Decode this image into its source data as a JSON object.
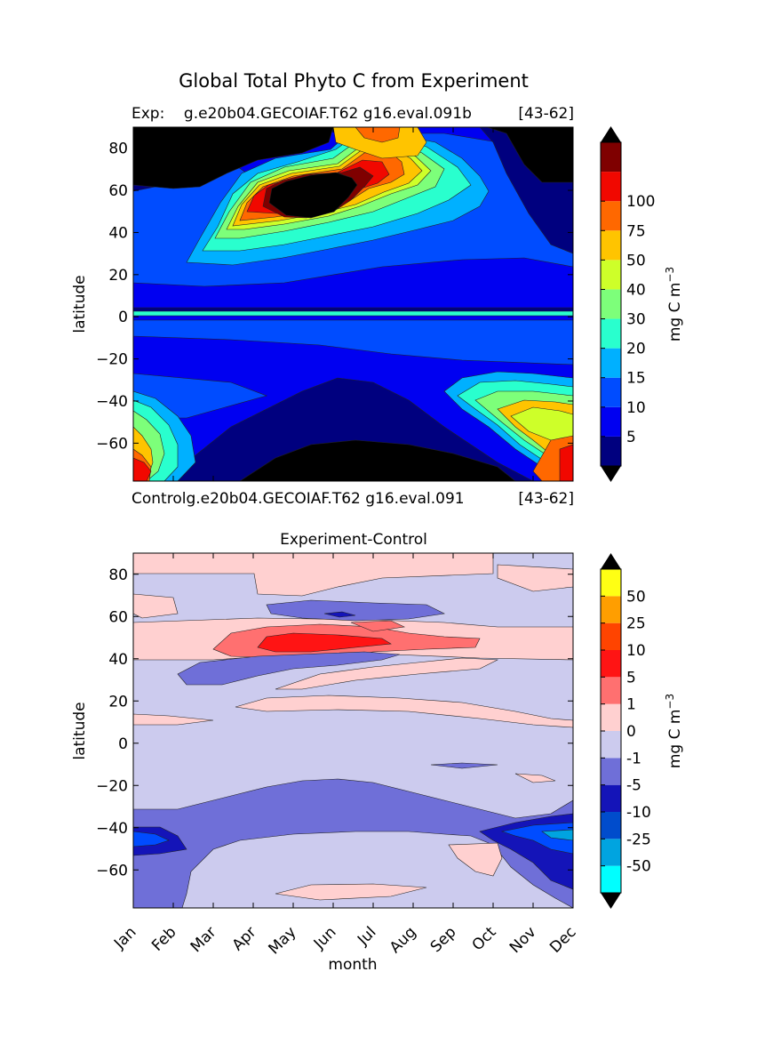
{
  "figure_title": "Global Total Phyto C from Experiment",
  "top_panel": {
    "left_label": "Exp:    g.e20b04.GECOIAF.T62 g16.eval.091b",
    "right_label": "[43-62]",
    "ylabel": "latitude",
    "colorbar_label": "mg C m",
    "colorbar_exponent": "−3"
  },
  "bottom_panel": {
    "caption_left": "Controlg.e20b04.GECOIAF.T62 g16.eval.091",
    "caption_right": "[43-62]",
    "title": "Experiment-Control",
    "ylabel": "latitude",
    "xlabel": "month",
    "colorbar_label": "mg C m",
    "colorbar_exponent": "−3"
  },
  "chart_data": [
    {
      "type": "heatmap",
      "title": "Global Total Phyto C from Experiment",
      "subtitle_left": "Exp:    g.e20b04.GECOIAF.T62 g16.eval.091b",
      "subtitle_right": "[43-62]",
      "x_categories": [
        "Jan",
        "Feb",
        "Mar",
        "Apr",
        "May",
        "Jun",
        "Jul",
        "Aug",
        "Sep",
        "Oct",
        "Nov",
        "Dec"
      ],
      "ylabel": "latitude",
      "ylim": [
        -78,
        90
      ],
      "yticks": [
        -60,
        -40,
        -20,
        0,
        20,
        40,
        60,
        80
      ],
      "colorbar": {
        "label": "mg C m−3",
        "levels": [
          0,
          5,
          10,
          15,
          20,
          30,
          40,
          50,
          75,
          100,
          120
        ],
        "tick_labels": [
          "5",
          "10",
          "15",
          "20",
          "30",
          "40",
          "50",
          "75",
          "100"
        ],
        "colors": [
          "#00007f",
          "#0000f1",
          "#004cff",
          "#00b0ff",
          "#29ffce",
          "#7dff7a",
          "#ceff29",
          "#ffc400",
          "#ff6800",
          "#f10800",
          "#7f0000"
        ],
        "over_color": "#000000",
        "under_color": "#000000"
      }
    },
    {
      "type": "heatmap",
      "title": "Experiment-Control",
      "x_categories": [
        "Jan",
        "Feb",
        "Mar",
        "Apr",
        "May",
        "Jun",
        "Jul",
        "Aug",
        "Sep",
        "Oct",
        "Nov",
        "Dec"
      ],
      "xlabel": "month",
      "ylabel": "latitude",
      "ylim": [
        -78,
        90
      ],
      "yticks": [
        -60,
        -40,
        -20,
        0,
        20,
        40,
        60,
        80
      ],
      "colorbar": {
        "label": "mg C m−3",
        "tick_labels": [
          "-50",
          "-25",
          "-10",
          "-5",
          "-1",
          "0",
          "1",
          "5",
          "10",
          "25",
          "50"
        ],
        "colors": [
          "#00ffff",
          "#00a4e0",
          "#004ccc",
          "#1414b8",
          "#6f6fd8",
          "#cccbee",
          "#ffd0d0",
          "#ff7070",
          "#ff1414",
          "#ff4400",
          "#ff9e00",
          "#ffff14"
        ],
        "over_color": "#000000",
        "under_color": "#000000"
      }
    }
  ]
}
